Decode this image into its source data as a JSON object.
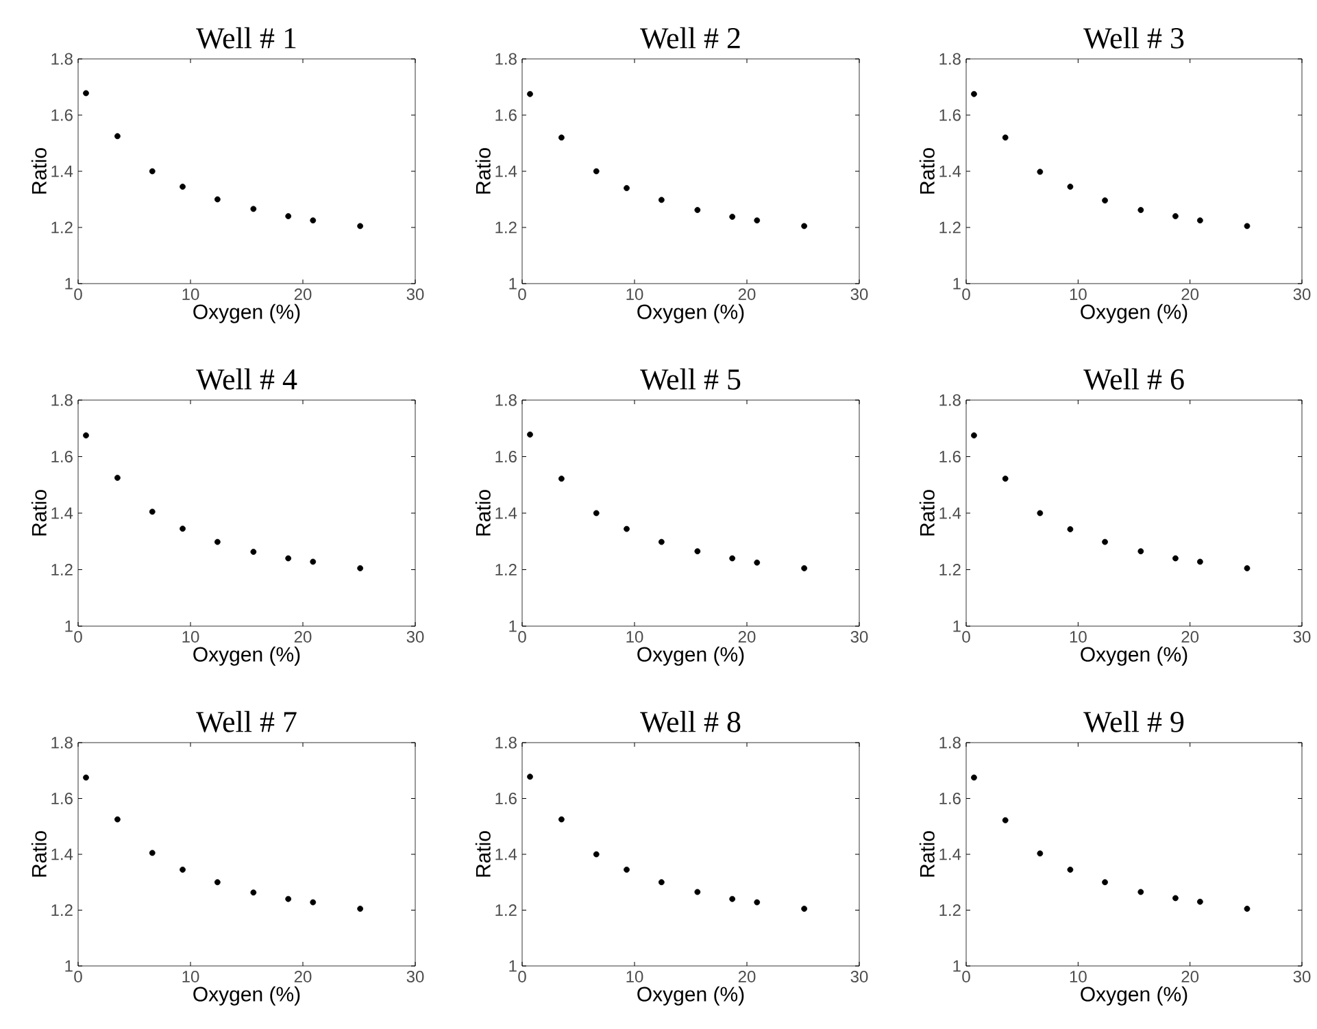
{
  "chart_data": [
    {
      "type": "scatter",
      "title": "Well # 1",
      "xlabel": "Oxygen (%)",
      "ylabel": "Ratio",
      "color": "#000000",
      "x": [
        0.7,
        3.5,
        6.6,
        9.3,
        12.4,
        15.6,
        18.7,
        20.9,
        25.1
      ],
      "values": [
        1.678,
        1.525,
        1.4,
        1.345,
        1.3,
        1.266,
        1.24,
        1.225,
        1.205
      ],
      "xlim": [
        0,
        30
      ],
      "ylim": [
        1,
        1.8
      ],
      "xticks": [
        0,
        10,
        20,
        30
      ],
      "yticks": [
        1,
        1.2,
        1.4,
        1.6,
        1.8
      ]
    },
    {
      "type": "scatter",
      "title": "Well # 2",
      "xlabel": "Oxygen (%)",
      "ylabel": "Ratio",
      "color": "#000000",
      "x": [
        0.7,
        3.5,
        6.6,
        9.3,
        12.4,
        15.6,
        18.7,
        20.9,
        25.1
      ],
      "values": [
        1.675,
        1.52,
        1.4,
        1.34,
        1.298,
        1.262,
        1.238,
        1.225,
        1.205
      ],
      "xlim": [
        0,
        30
      ],
      "ylim": [
        1,
        1.8
      ],
      "xticks": [
        0,
        10,
        20,
        30
      ],
      "yticks": [
        1,
        1.2,
        1.4,
        1.6,
        1.8
      ]
    },
    {
      "type": "scatter",
      "title": "Well # 3",
      "xlabel": "Oxygen (%)",
      "ylabel": "Ratio",
      "color": "#000000",
      "x": [
        0.7,
        3.5,
        6.6,
        9.3,
        12.4,
        15.6,
        18.7,
        20.9,
        25.1
      ],
      "values": [
        1.675,
        1.52,
        1.398,
        1.345,
        1.296,
        1.262,
        1.24,
        1.225,
        1.205
      ],
      "xlim": [
        0,
        30
      ],
      "ylim": [
        1,
        1.8
      ],
      "xticks": [
        0,
        10,
        20,
        30
      ],
      "yticks": [
        1,
        1.2,
        1.4,
        1.6,
        1.8
      ]
    },
    {
      "type": "scatter",
      "title": "Well # 4",
      "xlabel": "Oxygen (%)",
      "ylabel": "Ratio",
      "color": "#000000",
      "x": [
        0.7,
        3.5,
        6.6,
        9.3,
        12.4,
        15.6,
        18.7,
        20.9,
        25.1
      ],
      "values": [
        1.675,
        1.525,
        1.405,
        1.345,
        1.298,
        1.263,
        1.24,
        1.228,
        1.205
      ],
      "xlim": [
        0,
        30
      ],
      "ylim": [
        1,
        1.8
      ],
      "xticks": [
        0,
        10,
        20,
        30
      ],
      "yticks": [
        1,
        1.2,
        1.4,
        1.6,
        1.8
      ]
    },
    {
      "type": "scatter",
      "title": "Well # 5",
      "xlabel": "Oxygen (%)",
      "ylabel": "Ratio",
      "color": "#000000",
      "x": [
        0.7,
        3.5,
        6.6,
        9.3,
        12.4,
        15.6,
        18.7,
        20.9,
        25.1
      ],
      "values": [
        1.678,
        1.522,
        1.4,
        1.344,
        1.298,
        1.265,
        1.24,
        1.225,
        1.205
      ],
      "xlim": [
        0,
        30
      ],
      "ylim": [
        1,
        1.8
      ],
      "xticks": [
        0,
        10,
        20,
        30
      ],
      "yticks": [
        1,
        1.2,
        1.4,
        1.6,
        1.8
      ]
    },
    {
      "type": "scatter",
      "title": "Well # 6",
      "xlabel": "Oxygen (%)",
      "ylabel": "Ratio",
      "color": "#000000",
      "x": [
        0.7,
        3.5,
        6.6,
        9.3,
        12.4,
        15.6,
        18.7,
        20.9,
        25.1
      ],
      "values": [
        1.675,
        1.522,
        1.4,
        1.343,
        1.298,
        1.265,
        1.24,
        1.228,
        1.205
      ],
      "xlim": [
        0,
        30
      ],
      "ylim": [
        1,
        1.8
      ],
      "xticks": [
        0,
        10,
        20,
        30
      ],
      "yticks": [
        1,
        1.2,
        1.4,
        1.6,
        1.8
      ]
    },
    {
      "type": "scatter",
      "title": "Well # 7",
      "xlabel": "Oxygen (%)",
      "ylabel": "Ratio",
      "color": "#000000",
      "x": [
        0.7,
        3.5,
        6.6,
        9.3,
        12.4,
        15.6,
        18.7,
        20.9,
        25.1
      ],
      "values": [
        1.675,
        1.525,
        1.405,
        1.345,
        1.3,
        1.263,
        1.24,
        1.228,
        1.205
      ],
      "xlim": [
        0,
        30
      ],
      "ylim": [
        1,
        1.8
      ],
      "xticks": [
        0,
        10,
        20,
        30
      ],
      "yticks": [
        1,
        1.2,
        1.4,
        1.6,
        1.8
      ]
    },
    {
      "type": "scatter",
      "title": "Well # 8",
      "xlabel": "Oxygen (%)",
      "ylabel": "Ratio",
      "color": "#000000",
      "x": [
        0.7,
        3.5,
        6.6,
        9.3,
        12.4,
        15.6,
        18.7,
        20.9,
        25.1
      ],
      "values": [
        1.678,
        1.525,
        1.4,
        1.345,
        1.3,
        1.265,
        1.24,
        1.228,
        1.205
      ],
      "xlim": [
        0,
        30
      ],
      "ylim": [
        1,
        1.8
      ],
      "xticks": [
        0,
        10,
        20,
        30
      ],
      "yticks": [
        1,
        1.2,
        1.4,
        1.6,
        1.8
      ]
    },
    {
      "type": "scatter",
      "title": "Well # 9",
      "xlabel": "Oxygen (%)",
      "ylabel": "Ratio",
      "color": "#000000",
      "x": [
        0.7,
        3.5,
        6.6,
        9.3,
        12.4,
        15.6,
        18.7,
        20.9,
        25.1
      ],
      "values": [
        1.675,
        1.522,
        1.403,
        1.345,
        1.3,
        1.265,
        1.243,
        1.23,
        1.205
      ],
      "xlim": [
        0,
        30
      ],
      "ylim": [
        1,
        1.8
      ],
      "xticks": [
        0,
        10,
        20,
        30
      ],
      "yticks": [
        1,
        1.2,
        1.4,
        1.6,
        1.8
      ]
    }
  ]
}
